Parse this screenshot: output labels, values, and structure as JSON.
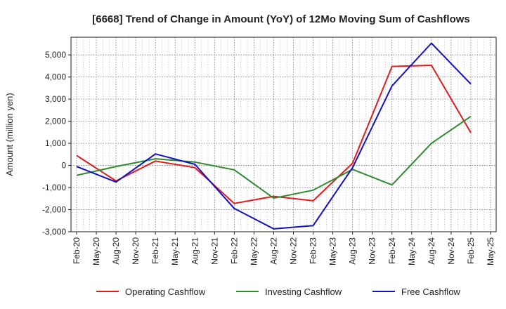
{
  "chart_data": {
    "type": "line",
    "title": "[6668]  Trend of Change in Amount (YoY) of 12Mo Moving Sum of Cashflows",
    "xlabel": "",
    "ylabel": "Amount (million yen)",
    "ylim": [
      -3000,
      5800
    ],
    "yticks": [
      -3000,
      -2000,
      -1000,
      0,
      1000,
      2000,
      3000,
      4000,
      5000
    ],
    "ytick_labels": [
      "-3,000",
      "-2,000",
      "-1,000",
      "0",
      "1,000",
      "2,000",
      "3,000",
      "4,000",
      "5,000"
    ],
    "categories": [
      "Feb-20",
      "May-20",
      "Aug-20",
      "Nov-20",
      "Feb-21",
      "May-21",
      "Aug-21",
      "Nov-21",
      "Feb-22",
      "May-22",
      "Aug-22",
      "Nov-22",
      "Feb-23",
      "May-23",
      "Aug-23",
      "Nov-23",
      "Feb-24",
      "May-24",
      "Aug-24",
      "Nov-24",
      "Feb-25",
      "May-25"
    ],
    "grid": true,
    "legend_position": "bottom",
    "series": [
      {
        "name": "Operating Cashflow",
        "color": "#e41a1c",
        "values": [
          450,
          null,
          -700,
          null,
          200,
          null,
          -100,
          null,
          -1720,
          null,
          -1400,
          null,
          -1600,
          null,
          100,
          null,
          4480,
          null,
          4530,
          null,
          1480,
          null
        ]
      },
      {
        "name": "Investing Cashflow",
        "color": "#2e8b2e",
        "values": [
          -450,
          null,
          -50,
          null,
          300,
          null,
          150,
          null,
          -200,
          null,
          -1480,
          null,
          -1120,
          null,
          -180,
          null,
          -880,
          null,
          1000,
          null,
          2220,
          null
        ]
      },
      {
        "name": "Free Cashflow",
        "color": "#1010cc",
        "values": [
          -50,
          null,
          -750,
          null,
          520,
          null,
          50,
          null,
          -1950,
          null,
          -2870,
          null,
          -2720,
          null,
          -100,
          null,
          3600,
          null,
          5530,
          null,
          3680,
          null
        ]
      }
    ]
  }
}
